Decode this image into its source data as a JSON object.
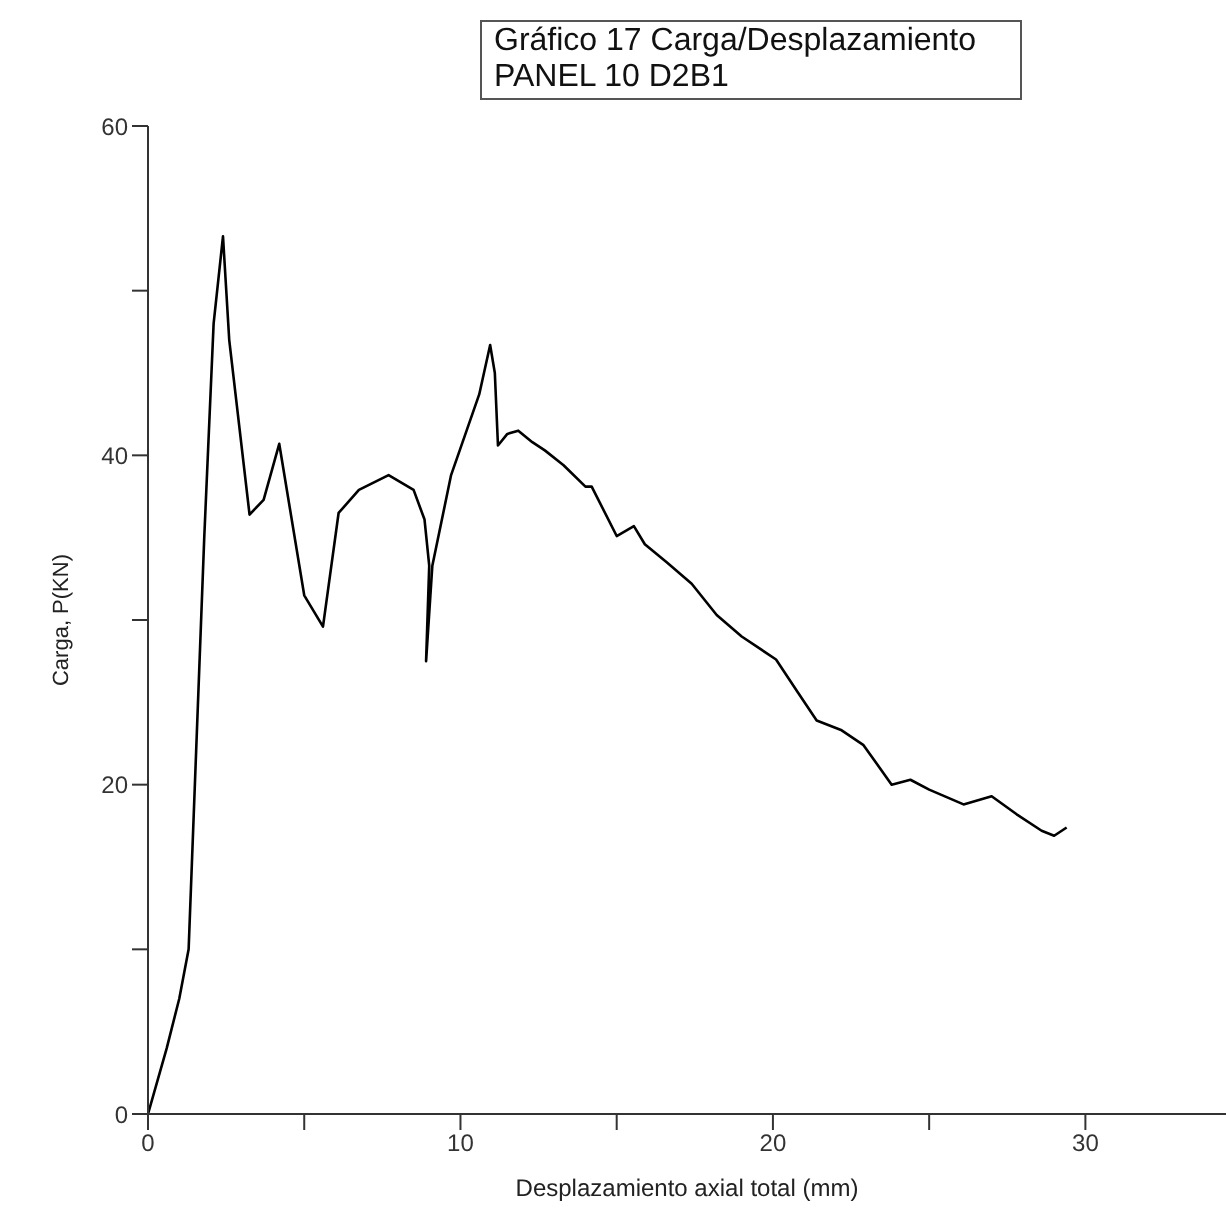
{
  "chart_data": {
    "type": "line",
    "title": "Gráfico 17 Carga/Desplazamiento",
    "subtitle": "PANEL 10 D2B1",
    "xlabel": "Desplazamiento axial total (mm)",
    "ylabel": "Carga, P(KN)",
    "x": [
      0,
      0.6,
      1.0,
      1.2,
      1.3,
      1.5,
      1.8,
      2.1,
      2.4,
      2.6,
      3.25,
      3.7,
      4.2,
      5.0,
      5.6,
      6.1,
      6.75,
      7.7,
      8.5,
      8.85,
      9.0,
      8.9,
      9.1,
      9.7,
      10.6,
      10.95,
      11.1,
      11.2,
      11.5,
      11.85,
      12.3,
      12.7,
      13.3,
      14.0,
      14.2,
      15.0,
      15.55,
      15.9,
      16.6,
      17.4,
      18.2,
      19.0,
      20.1,
      20.8,
      21.4,
      22.2,
      22.9,
      23.8,
      24.4,
      25.0,
      26.1,
      27.0,
      27.8,
      28.6,
      29.0,
      29.4
    ],
    "series": [
      {
        "color": "#000000",
        "values": [
          0,
          4,
          7,
          9,
          10,
          20,
          35,
          48,
          53.3,
          47,
          36.4,
          37.3,
          40.7,
          31.5,
          29.6,
          36.5,
          37.9,
          38.8,
          37.9,
          36.1,
          33.3,
          27.5,
          33.3,
          38.8,
          43.7,
          46.7,
          45,
          40.6,
          41.3,
          41.5,
          40.8,
          40.3,
          39.4,
          38.1,
          38.1,
          35.1,
          35.7,
          34.6,
          33.5,
          32.2,
          30.3,
          29.0,
          27.6,
          25.6,
          23.9,
          23.3,
          22.4,
          20.0,
          20.3,
          19.7,
          18.8,
          19.3,
          18.2,
          17.2,
          16.9,
          17.4
        ]
      }
    ],
    "xlim": [
      0,
      34.5
    ],
    "xticks": [
      0,
      {
        "value": 5,
        "label": null
      },
      10,
      {
        "value": 15,
        "label": null
      },
      20,
      {
        "value": 25,
        "label": null
      },
      30
    ],
    "ylim": [
      0,
      60
    ],
    "yticks": [
      0,
      {
        "value": 10,
        "label": null
      },
      20,
      {
        "value": 30,
        "label": null
      },
      40,
      {
        "value": 50,
        "label": null
      },
      60
    ],
    "grid": false,
    "legend": false,
    "marker": "none",
    "line_style": "solid"
  }
}
